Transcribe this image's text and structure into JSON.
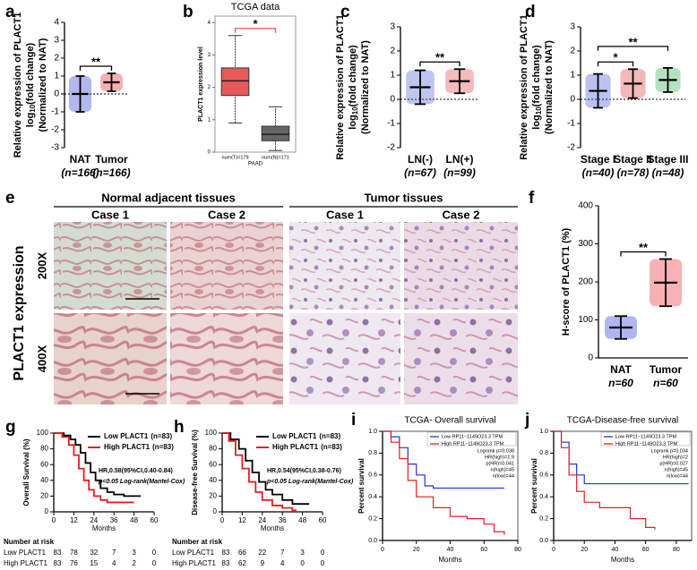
{
  "panels": [
    {
      "letter": "a",
      "chart_data": {
        "type": "dot",
        "ylabel": [
          "Relative expression of PLACT1",
          [
            "log",
            "10",
            "(fold change)"
          ],
          "(Normalized to NAT)"
        ],
        "ylim": [
          -3,
          4
        ],
        "yticks": [
          -3,
          -2,
          -1,
          0,
          1,
          2,
          3,
          4
        ],
        "zero_line": true,
        "groups": [
          {
            "name": "NAT",
            "n_label": "(n=166)",
            "color": "#2233cc",
            "mean": 0,
            "sd": 1.0
          },
          {
            "name": "Tumor",
            "n_label": "(n=166)",
            "color": "#e02020",
            "mean": 0.65,
            "sd": 0.5
          }
        ],
        "significance": [
          {
            "between": [
              "NAT",
              "Tumor"
            ],
            "label": "**"
          }
        ]
      }
    },
    {
      "letter": "b",
      "chart_data": {
        "type": "box",
        "title": "TCGA data",
        "ylabel": "PLACT1 expression level",
        "ylim": [
          0,
          4.2
        ],
        "yticks": [
          0,
          1,
          2,
          3,
          4
        ],
        "xlabel": "PAAD",
        "groups": [
          {
            "name": "num(T)=179",
            "color": "#e8595a",
            "median": 2.2,
            "q1": 1.75,
            "q3": 2.6,
            "whisker_low": 0.9,
            "whisker_high": 3.6
          },
          {
            "name": "num(N)=171",
            "color": "#666666",
            "median": 0.55,
            "q1": 0.35,
            "q3": 0.8,
            "whisker_low": 0.05,
            "whisker_high": 1.4
          }
        ],
        "significance": [
          {
            "between": [
              "num(T)=179",
              "num(N)=171"
            ],
            "label": "*",
            "color": "#e8595a"
          }
        ]
      }
    },
    {
      "letter": "c",
      "chart_data": {
        "type": "dot",
        "ylabel": [
          "Relative expression of PLACT1",
          [
            "log",
            "10",
            "(fold change)"
          ],
          "(Normalized to NAT)"
        ],
        "ylim": [
          -2,
          3
        ],
        "yticks": [
          -2,
          -1,
          0,
          1,
          2,
          3
        ],
        "zero_line": true,
        "groups": [
          {
            "name": "LN(-)",
            "n_label": "(n=67)",
            "color": "#4a5ad0",
            "mean": 0.5,
            "sd": 0.7
          },
          {
            "name": "LN(+)",
            "n_label": "(n=99)",
            "color": "#e23a3a",
            "mean": 0.75,
            "sd": 0.5
          }
        ],
        "significance": [
          {
            "between": [
              "LN(-)",
              "LN(+)"
            ],
            "label": "**"
          }
        ]
      }
    },
    {
      "letter": "d",
      "chart_data": {
        "type": "dot",
        "ylabel": [
          "Relative expression of PLACT1",
          [
            "log",
            "10",
            "(fold change)"
          ],
          "(Normalized to NAT)"
        ],
        "ylim": [
          -2,
          3
        ],
        "yticks": [
          -2,
          -1,
          0,
          1,
          2,
          3
        ],
        "zero_line": true,
        "groups": [
          {
            "name": "Stage I",
            "n_label": "(n=40)",
            "color": "#3c4fd0",
            "mean": 0.35,
            "sd": 0.7
          },
          {
            "name": "Stage II",
            "n_label": "(n=78)",
            "color": "#e0303a",
            "mean": 0.65,
            "sd": 0.6
          },
          {
            "name": "Stage III",
            "n_label": "(n=48)",
            "color": "#2aa84a",
            "mean": 0.8,
            "sd": 0.5
          }
        ],
        "significance": [
          {
            "between": [
              "Stage I",
              "Stage II"
            ],
            "label": "*"
          },
          {
            "between": [
              "Stage I",
              "Stage III"
            ],
            "label": "**"
          }
        ]
      }
    },
    {
      "letter": "e",
      "side_label": "PLACT1 expression",
      "groups": [
        {
          "title": "Normal adjacent tissues",
          "cases": [
            "Case 1",
            "Case 2"
          ]
        },
        {
          "title": "Tumor tissues",
          "cases": [
            "Case 1",
            "Case 2"
          ]
        }
      ],
      "magnifications": [
        "200X",
        "400X"
      ]
    },
    {
      "letter": "f",
      "chart_data": {
        "type": "dot",
        "ylabel": "H-score of PLACT1 (%)",
        "ylim": [
          0,
          400
        ],
        "yticks": [
          0,
          100,
          200,
          300,
          400
        ],
        "x_axis_line": true,
        "groups": [
          {
            "name": "NAT",
            "n_label": "n=60",
            "color": "#1f2fd6",
            "mean": 80,
            "sd": 30
          },
          {
            "name": "Tumor",
            "n_label": "n=60",
            "color": "#e8202a",
            "mean": 198,
            "sd": 62
          }
        ],
        "significance": [
          {
            "between": [
              "NAT",
              "Tumor"
            ],
            "label": "**"
          }
        ]
      }
    },
    {
      "letter": "g",
      "chart_data": {
        "type": "km",
        "ylabel": "Overall Survival (%)",
        "xlabel": "Months",
        "xlim": [
          0,
          60
        ],
        "xticks": [
          0,
          12,
          24,
          36,
          48,
          60
        ],
        "ylim": [
          0,
          100
        ],
        "yticks": [
          0,
          20,
          40,
          60,
          80,
          100
        ],
        "series": [
          {
            "name": "Low PLACT1",
            "n_label": "(n=83)",
            "color": "#000000",
            "x": [
              0,
              6,
              10,
              13,
              16,
              19,
              22,
              25,
              28,
              32,
              36,
              42,
              52
            ],
            "values": [
              100,
              97,
              92,
              85,
              75,
              62,
              50,
              40,
              30,
              25,
              22,
              20,
              20
            ]
          },
          {
            "name": "High PLACT1",
            "n_label": "(n=83)",
            "color": "#e02020",
            "x": [
              0,
              5,
              9,
              12,
              15,
              18,
              21,
              24,
              28,
              32,
              48
            ],
            "values": [
              100,
              95,
              85,
              72,
              55,
              40,
              28,
              20,
              15,
              12,
              12
            ]
          }
        ],
        "annotations": [
          "HR,0.58(95%CI,0.40-0.84)",
          "p<0.05 Log-rank(Mantel-Cox)"
        ],
        "risk_table": {
          "title": "Number at risk",
          "rows": [
            {
              "name": "Low PLACT1",
              "values": [
                83,
                78,
                32,
                7,
                3,
                0
              ]
            },
            {
              "name": "High PLACT1",
              "values": [
                83,
                76,
                15,
                4,
                2,
                0
              ]
            }
          ]
        }
      }
    },
    {
      "letter": "h",
      "chart_data": {
        "type": "km",
        "ylabel": "Disease-free Survival (%)",
        "xlabel": "Months",
        "xlim": [
          0,
          60
        ],
        "xticks": [
          0,
          12,
          24,
          36,
          48,
          60
        ],
        "ylim": [
          0,
          100
        ],
        "yticks": [
          0,
          20,
          40,
          60,
          80,
          100
        ],
        "series": [
          {
            "name": "Low PLACT1",
            "n_label": "(n=83)",
            "color": "#000000",
            "x": [
              0,
              5,
              10,
              14,
              18,
              22,
              26,
              30,
              36,
              42,
              52
            ],
            "values": [
              100,
              92,
              80,
              65,
              50,
              38,
              28,
              22,
              15,
              10,
              10
            ]
          },
          {
            "name": "High PLACT1",
            "n_label": "(n=83)",
            "color": "#e02020",
            "x": [
              0,
              4,
              8,
              12,
              16,
              20,
              24,
              30,
              36,
              42,
              44
            ],
            "values": [
              100,
              90,
              72,
              55,
              38,
              25,
              15,
              8,
              5,
              2,
              0
            ]
          }
        ],
        "annotations": [
          "HR,0.54(95%CI,0.38-0.76)",
          "p<0.05 Log-rank(Mantel-Cox)"
        ],
        "risk_table": {
          "title": "Number at risk",
          "rows": [
            {
              "name": "Low PLACT1",
              "values": [
                83,
                66,
                22,
                7,
                3,
                0
              ]
            },
            {
              "name": "High PLACT1",
              "values": [
                83,
                62,
                9,
                4,
                0,
                0
              ]
            }
          ]
        }
      }
    },
    {
      "letter": "i",
      "chart_data": {
        "type": "km_tcga",
        "title": "TCGA- Overall survival",
        "ylabel": "Percent survival",
        "xlabel": "Months",
        "xlim": [
          0,
          80
        ],
        "xticks": [
          0,
          20,
          40,
          60,
          80
        ],
        "ylim": [
          0,
          1
        ],
        "yticks": [
          {
            "value": 0,
            "label": "0.0"
          },
          {
            "value": 0.2,
            "label": "0.2"
          },
          {
            "value": 0.4,
            "label": "0.4"
          },
          {
            "value": 0.6,
            "label": "0.6"
          },
          {
            "value": 0.8,
            "label": "0.8"
          },
          {
            "value": 1,
            "label": "1.0"
          }
        ],
        "series": [
          {
            "name": "Low RP11−1149O23.3 TPM",
            "color": "#2233cc",
            "x": [
              0,
              5,
              10,
              15,
              20,
              25,
              30,
              72
            ],
            "values": [
              1,
              0.95,
              0.85,
              0.7,
              0.6,
              0.5,
              0.48,
              0.48
            ]
          },
          {
            "name": "High RP11−1149O23.3 TPM",
            "color": "#e02020",
            "x": [
              0,
              5,
              10,
              15,
              20,
              30,
              40,
              50,
              60,
              66,
              72
            ],
            "values": [
              1,
              0.9,
              0.75,
              0.55,
              0.4,
              0.3,
              0.22,
              0.2,
              0.15,
              0.08,
              0.05
            ]
          }
        ],
        "stats": [
          "Logrank p=0.038",
          "HR(high)=1.9",
          "p(HR)=0.041",
          "n(high)=45",
          "n(low)=44"
        ]
      }
    },
    {
      "letter": "j",
      "chart_data": {
        "type": "km_tcga",
        "title": "TCGA-Disease-free survival",
        "ylabel": "Percent survival",
        "xlabel": "Months",
        "xlim": [
          0,
          90
        ],
        "xticks": [
          0,
          20,
          40,
          60,
          80
        ],
        "ylim": [
          0,
          1
        ],
        "yticks": [
          {
            "value": 0,
            "label": "0.0"
          },
          {
            "value": 0.2,
            "label": "0.2"
          },
          {
            "value": 0.4,
            "label": "0.4"
          },
          {
            "value": 0.6,
            "label": "0.6"
          },
          {
            "value": 0.8,
            "label": "0.8"
          },
          {
            "value": 1,
            "label": "1.0"
          }
        ],
        "series": [
          {
            "name": "Low RP11−1149O23.3 TPM",
            "color": "#2233cc",
            "x": [
              0,
              5,
              10,
              15,
              20,
              88
            ],
            "values": [
              1,
              0.9,
              0.7,
              0.6,
              0.52,
              0.52
            ]
          },
          {
            "name": "High RP11−1149O23.3 TPM",
            "color": "#e02020",
            "x": [
              0,
              5,
              10,
              15,
              20,
              30,
              50,
              60,
              66
            ],
            "values": [
              1,
              0.85,
              0.6,
              0.45,
              0.35,
              0.3,
              0.2,
              0.12,
              0.1
            ]
          }
        ],
        "stats": [
          "Logrank p=0.034",
          "HR(high)=2",
          "p(HR)=0.027",
          "n(high)=45",
          "n(low)=44"
        ]
      }
    }
  ]
}
